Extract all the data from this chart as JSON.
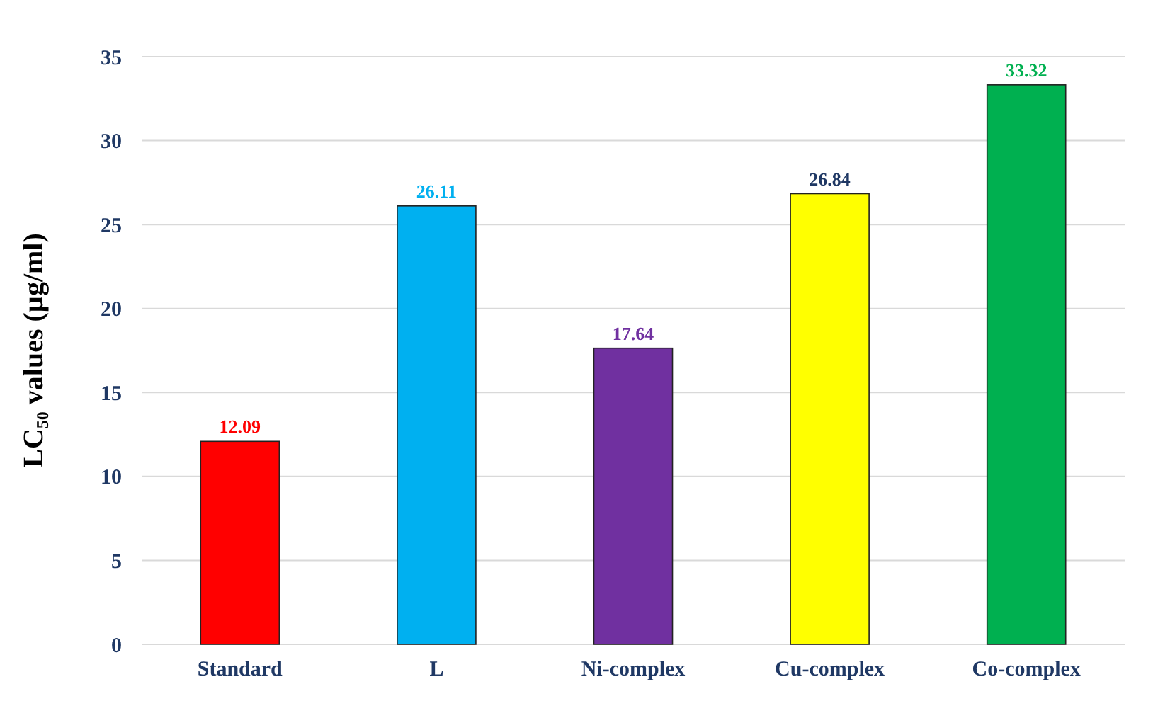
{
  "chart_data": {
    "type": "bar",
    "ylabel": "LC₅₀ values (µg/ml)",
    "categories": [
      "Standard",
      "L",
      "Ni-complex",
      "Cu-complex",
      "Co-complex"
    ],
    "values": [
      12.09,
      26.11,
      17.64,
      26.84,
      33.32
    ],
    "colors": [
      "#ff0000",
      "#00b0f0",
      "#7030a0",
      "#ffff00",
      "#00b050"
    ],
    "ylim": [
      0,
      35
    ],
    "yticks": [
      0,
      5,
      10,
      15,
      20,
      25,
      30,
      35
    ],
    "grid": "y",
    "data_labels": true
  }
}
